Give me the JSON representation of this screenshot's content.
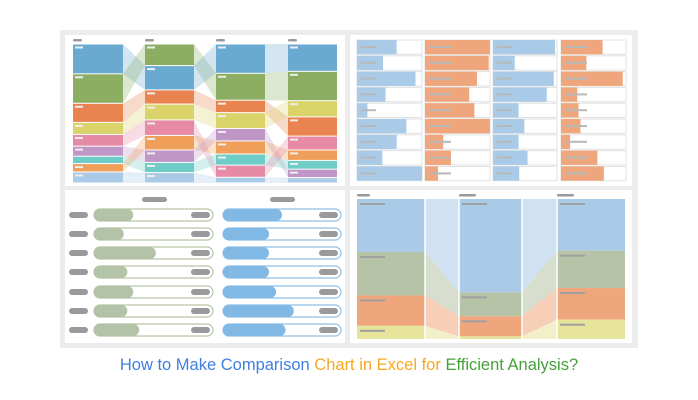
{
  "title": {
    "part1": "How to Make Comparison ",
    "part2": "Chart in Excel for ",
    "part3": "Efficient Analysis?",
    "colors": [
      "#3f7fe3",
      "#f7a823",
      "#46a03a"
    ]
  },
  "colors": {
    "blue": "#6aaad0",
    "green": "#8cae63",
    "orange": "#e98350",
    "yellow": "#d9d36a",
    "pink": "#e68aa6",
    "purple": "#c096c6",
    "teal": "#6fcdc8",
    "orange2": "#ef9f5a",
    "lightblue": "#a9cbe8",
    "sage": "#b6c3a6",
    "salmon": "#f0a67c",
    "paleyellow": "#e6e49a",
    "barblue": "#a9cbe8",
    "barorange": "#f0a67c",
    "sliderblue": "#82b8e4",
    "slidergreen": "#b3c3a8"
  },
  "alluvial": {
    "columns": [
      [
        [
          "blue",
          89
        ],
        [
          "green",
          88
        ],
        [
          "orange",
          57
        ],
        [
          "yellow",
          36
        ],
        [
          "pink",
          35
        ],
        [
          "purple",
          30
        ],
        [
          "teal",
          22
        ],
        [
          "orange2",
          25
        ],
        [
          "lightblue",
          33
        ]
      ],
      [
        [
          "green",
          64
        ],
        [
          "blue",
          72
        ],
        [
          "orange",
          42
        ],
        [
          "yellow",
          47
        ],
        [
          "pink",
          46
        ],
        [
          "orange2",
          43
        ],
        [
          "purple",
          37
        ],
        [
          "teal",
          30
        ],
        [
          "lightblue",
          31
        ]
      ],
      [
        [
          "blue",
          87
        ],
        [
          "green",
          80
        ],
        [
          "orange",
          37
        ],
        [
          "yellow",
          47
        ],
        [
          "purple",
          37
        ],
        [
          "orange2",
          39
        ],
        [
          "teal",
          33
        ],
        [
          "pink",
          36
        ],
        [
          "lightblue",
          17
        ]
      ],
      [
        [
          "blue",
          81
        ],
        [
          "green",
          87
        ],
        [
          "yellow",
          48
        ],
        [
          "orange",
          57
        ],
        [
          "pink",
          41
        ],
        [
          "orange2",
          31
        ],
        [
          "teal",
          26
        ],
        [
          "purple",
          25
        ],
        [
          "lightblue",
          16
        ]
      ]
    ]
  },
  "bar_table": {
    "columns": [
      {
        "color": "barblue",
        "values": [
          0.61,
          0.4,
          0.9,
          0.44,
          0.16,
          0.76,
          0.61,
          0.39,
          1.0
        ]
      },
      {
        "color": "barorange",
        "values": [
          1.0,
          0.98,
          0.8,
          0.68,
          0.76,
          1.0,
          0.28,
          0.4,
          0.2
        ]
      },
      {
        "color": "barblue",
        "values": [
          0.97,
          0.34,
          0.95,
          0.84,
          0.4,
          0.49,
          0.4,
          0.54,
          0.41
        ]
      },
      {
        "color": "barorange",
        "values": [
          0.64,
          0.39,
          0.95,
          0.25,
          0.27,
          0.3,
          0.14,
          0.56,
          0.66
        ]
      }
    ]
  },
  "sliders": {
    "green": [
      0.33,
      0.25,
      0.52,
      0.28,
      0.33,
      0.28,
      0.38
    ],
    "blue": [
      0.5,
      0.39,
      0.39,
      0.39,
      0.45,
      0.6,
      0.53
    ]
  },
  "stacked": {
    "columns": [
      [
        [
          "lightblue",
          0.379
        ],
        [
          "sage",
          0.31
        ],
        [
          "salmon",
          0.217
        ],
        [
          "paleyellow",
          0.094
        ]
      ],
      [
        [
          "lightblue",
          0.667
        ],
        [
          "sage",
          0.171
        ],
        [
          "salmon",
          0.143
        ],
        [
          "paleyellow",
          0.019
        ]
      ],
      [
        [
          "lightblue",
          0.369
        ],
        [
          "sage",
          0.267
        ],
        [
          "salmon",
          0.226
        ],
        [
          "paleyellow",
          0.138
        ]
      ]
    ]
  }
}
